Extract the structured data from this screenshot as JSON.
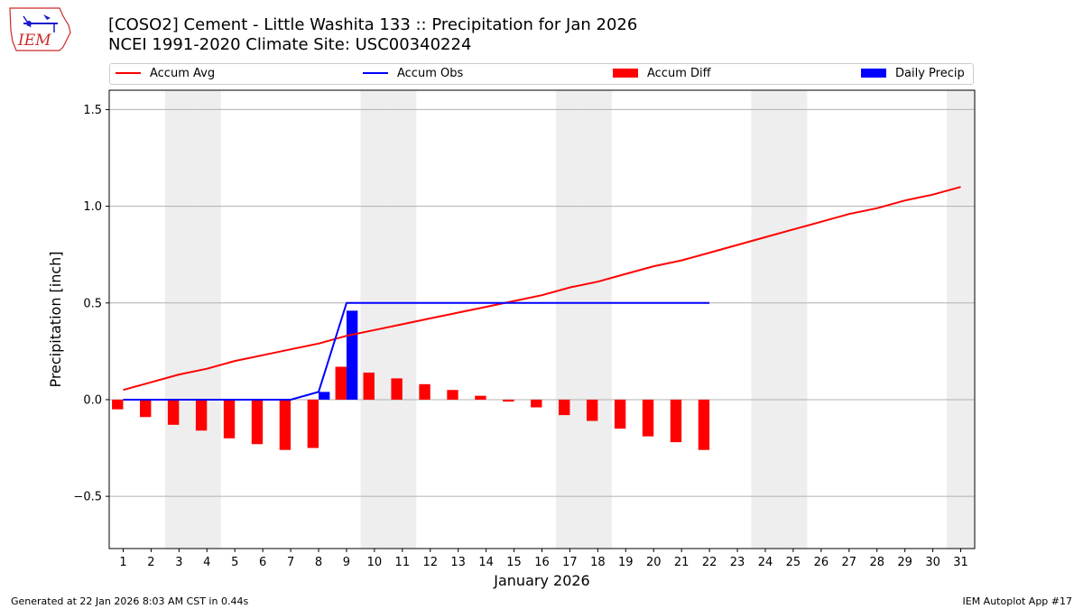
{
  "header": {
    "logo_text": "IEM",
    "title_line1": "[COSO2] Cement - Little Washita 133 :: Precipitation for Jan 2026",
    "title_line2": "NCEI 1991-2020 Climate Site: USC00340224"
  },
  "legend": {
    "accum_avg": "Accum Avg",
    "accum_obs": "Accum Obs",
    "accum_diff": "Accum Diff",
    "daily_precip": "Daily Precip"
  },
  "footer": {
    "generated": "Generated at 22 Jan 2026 8:03 AM CST in 0.44s",
    "app": "IEM Autoplot App #17"
  },
  "colors": {
    "accum_avg": "#ff0000",
    "accum_obs": "#0000ff",
    "accum_diff": "#ff0000",
    "daily_precip": "#0000ff",
    "weekend_band": "#eeeeee",
    "grid": "#b0b0b0"
  },
  "chart_data": {
    "type": "bar",
    "xlabel": "January 2026",
    "ylabel": "Precipitation [inch]",
    "ylim": [
      -0.77,
      1.6
    ],
    "xlim": [
      0.5,
      31.5
    ],
    "yticks": [
      -0.5,
      0.0,
      0.5,
      1.0,
      1.5
    ],
    "ytick_labels": [
      "−0.5",
      "0.0",
      "0.5",
      "1.0",
      "1.5"
    ],
    "xticks": [
      "1",
      "2",
      "3",
      "4",
      "5",
      "6",
      "7",
      "8",
      "9",
      "10",
      "11",
      "12",
      "13",
      "14",
      "15",
      "16",
      "17",
      "18",
      "19",
      "20",
      "21",
      "22",
      "23",
      "24",
      "25",
      "26",
      "27",
      "28",
      "29",
      "30",
      "31"
    ],
    "grid": "horizontal",
    "legend_position": "top",
    "weekend_days": [
      3,
      4,
      10,
      11,
      17,
      18,
      24,
      25,
      31
    ],
    "series": [
      {
        "name": "Accum Avg",
        "type": "line",
        "x": [
          1,
          2,
          3,
          4,
          5,
          6,
          7,
          8,
          9,
          10,
          11,
          12,
          13,
          14,
          15,
          16,
          17,
          18,
          19,
          20,
          21,
          22,
          23,
          24,
          25,
          26,
          27,
          28,
          29,
          30,
          31
        ],
        "values": [
          0.05,
          0.09,
          0.13,
          0.16,
          0.2,
          0.23,
          0.26,
          0.29,
          0.33,
          0.36,
          0.39,
          0.42,
          0.45,
          0.48,
          0.51,
          0.54,
          0.58,
          0.61,
          0.65,
          0.69,
          0.72,
          0.76,
          0.8,
          0.84,
          0.88,
          0.92,
          0.96,
          0.99,
          1.03,
          1.06,
          1.1
        ]
      },
      {
        "name": "Accum Obs",
        "type": "line",
        "x": [
          1,
          2,
          3,
          4,
          5,
          6,
          7,
          8,
          9,
          10,
          11,
          12,
          13,
          14,
          15,
          16,
          17,
          18,
          19,
          20,
          21,
          22
        ],
        "values": [
          0.0,
          0.0,
          0.0,
          0.0,
          0.0,
          0.0,
          0.0,
          0.04,
          0.5,
          0.5,
          0.5,
          0.5,
          0.5,
          0.5,
          0.5,
          0.5,
          0.5,
          0.5,
          0.5,
          0.5,
          0.5,
          0.5
        ]
      },
      {
        "name": "Accum Diff",
        "type": "bar",
        "x": [
          1,
          2,
          3,
          4,
          5,
          6,
          7,
          8,
          9,
          10,
          11,
          12,
          13,
          14,
          15,
          16,
          17,
          18,
          19,
          20,
          21,
          22
        ],
        "values": [
          -0.05,
          -0.09,
          -0.13,
          -0.16,
          -0.2,
          -0.23,
          -0.26,
          -0.25,
          0.17,
          0.14,
          0.11,
          0.08,
          0.05,
          0.02,
          -0.01,
          -0.04,
          -0.08,
          -0.11,
          -0.15,
          -0.19,
          -0.22,
          -0.26
        ]
      },
      {
        "name": "Daily Precip",
        "type": "bar",
        "x": [
          8,
          9
        ],
        "values": [
          0.04,
          0.46
        ]
      }
    ]
  }
}
